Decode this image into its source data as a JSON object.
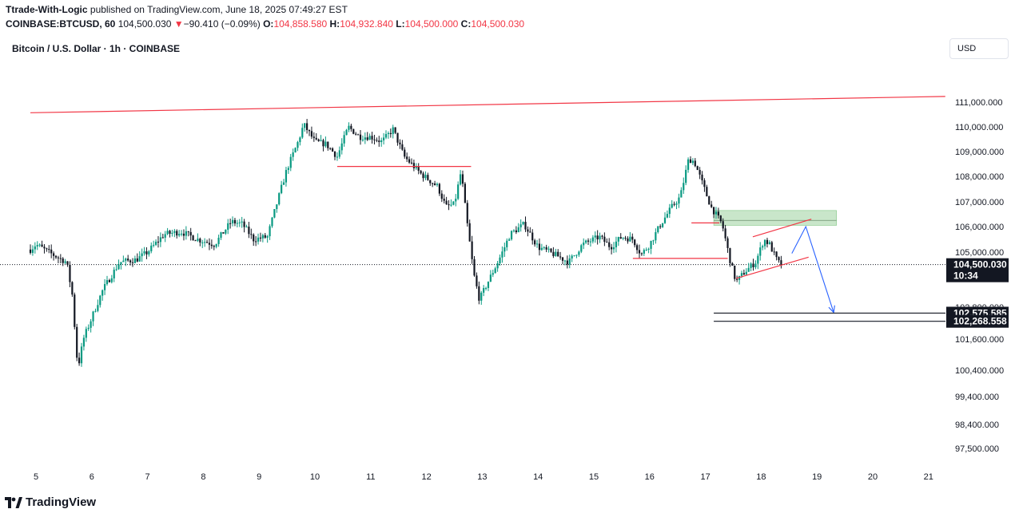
{
  "header": {
    "publisher": "Ttrade-With-Logic",
    "published_text": "published on TradingView.com, June 18, 2025 07:49:27 EST",
    "symbol": "COINBASE:BTCUSD, 60",
    "last": "104,500.030",
    "change_arrow": "▼",
    "change": "−90.410 (−0.09%)",
    "o_label": "O:",
    "o_value": "104,858.580",
    "h_label": "H:",
    "h_value": "104,932.840",
    "l_label": "L:",
    "l_value": "104,500.000",
    "c_label": "C:",
    "c_value": "104,500.030"
  },
  "legend_title": "Bitcoin / U.S. Dollar · 1h · COINBASE",
  "currency_button": "USD",
  "brand": "TradingView",
  "colors": {
    "up": "#089981",
    "down": "#131722",
    "red_line": "#f23645",
    "blue_arrow": "#2962ff",
    "zone_fill": "#a5d6a7",
    "price_label_bg": "#131722"
  },
  "chart_data": {
    "type": "candlestick",
    "ylim": [
      97000,
      111800
    ],
    "y_ticks": [
      "111,000.000",
      "110,000.000",
      "109,000.000",
      "108,000.000",
      "107,000.000",
      "106,000.000",
      "105,000.000",
      "102,800.000",
      "101,600.000",
      "100,400.000",
      "99,400.000",
      "98,400.000",
      "97,500.000"
    ],
    "y_tick_values": [
      111000,
      110000,
      109000,
      108000,
      107000,
      106000,
      105000,
      102800,
      101600,
      100400,
      99400,
      98400,
      97500
    ],
    "x_ticks": [
      "5",
      "6",
      "7",
      "8",
      "9",
      "10",
      "11",
      "12",
      "13",
      "14",
      "15",
      "16",
      "17",
      "18",
      "19",
      "20",
      "21"
    ],
    "x_tick_days": [
      5,
      6,
      7,
      8,
      9,
      10,
      11,
      12,
      13,
      14,
      15,
      16,
      17,
      18,
      19,
      20,
      21
    ],
    "price_path": [
      [
        4.9,
        105100
      ],
      [
        5.0,
        105300
      ],
      [
        5.3,
        104900
      ],
      [
        5.55,
        104600
      ],
      [
        5.65,
        103300
      ],
      [
        5.75,
        100450
      ],
      [
        5.85,
        101600
      ],
      [
        6.0,
        102400
      ],
      [
        6.2,
        103500
      ],
      [
        6.5,
        104600
      ],
      [
        6.8,
        104700
      ],
      [
        7.0,
        105000
      ],
      [
        7.3,
        105700
      ],
      [
        7.6,
        105800
      ],
      [
        7.9,
        105500
      ],
      [
        8.2,
        105300
      ],
      [
        8.5,
        106200
      ],
      [
        8.7,
        106100
      ],
      [
        8.9,
        105500
      ],
      [
        9.15,
        105600
      ],
      [
        9.3,
        106800
      ],
      [
        9.5,
        108300
      ],
      [
        9.7,
        109400
      ],
      [
        9.8,
        110100
      ],
      [
        10.0,
        109400
      ],
      [
        10.2,
        109300
      ],
      [
        10.4,
        108800
      ],
      [
        10.6,
        110000
      ],
      [
        10.8,
        109600
      ],
      [
        11.0,
        109600
      ],
      [
        11.2,
        109400
      ],
      [
        11.4,
        109900
      ],
      [
        11.6,
        108800
      ],
      [
        11.9,
        108100
      ],
      [
        12.2,
        107600
      ],
      [
        12.35,
        106800
      ],
      [
        12.5,
        106900
      ],
      [
        12.62,
        108200
      ],
      [
        12.72,
        106300
      ],
      [
        12.85,
        104100
      ],
      [
        12.95,
        103100
      ],
      [
        13.1,
        103800
      ],
      [
        13.3,
        104700
      ],
      [
        13.5,
        105700
      ],
      [
        13.75,
        106100
      ],
      [
        14.0,
        105200
      ],
      [
        14.3,
        104900
      ],
      [
        14.55,
        104600
      ],
      [
        14.8,
        105300
      ],
      [
        15.1,
        105600
      ],
      [
        15.3,
        105200
      ],
      [
        15.5,
        105600
      ],
      [
        15.7,
        105500
      ],
      [
        15.85,
        104900
      ],
      [
        16.0,
        105300
      ],
      [
        16.2,
        106100
      ],
      [
        16.4,
        106800
      ],
      [
        16.55,
        107200
      ],
      [
        16.7,
        108700
      ],
      [
        16.8,
        108600
      ],
      [
        16.95,
        107700
      ],
      [
        17.1,
        106800
      ],
      [
        17.3,
        106100
      ],
      [
        17.45,
        104600
      ],
      [
        17.55,
        103800
      ],
      [
        17.7,
        104200
      ],
      [
        17.9,
        104600
      ],
      [
        18.05,
        105500
      ],
      [
        18.15,
        105300
      ],
      [
        18.3,
        104600
      ],
      [
        18.38,
        104500
      ]
    ],
    "last_price_label": "104,500.030",
    "countdown_label": "10:34",
    "level_labels": [
      "102,575.585",
      "102,268.558"
    ],
    "level_values": [
      102575.585,
      102268.558
    ],
    "drawings": {
      "top_trendline": {
        "from": [
          4.9,
          110570
        ],
        "to": [
          21.3,
          111230
        ]
      },
      "support_line_1": {
        "from": [
          10.4,
          108400
        ],
        "to": [
          12.8,
          108400
        ]
      },
      "support_line_2": {
        "from": [
          15.7,
          104750
        ],
        "to": [
          17.4,
          104750
        ]
      },
      "resistance_line": {
        "from": [
          16.75,
          106150
        ],
        "to": [
          17.25,
          106150
        ]
      },
      "supply_zone": {
        "from_x": 17.15,
        "to_x": 19.35,
        "top": 106650,
        "bottom": 106050
      },
      "rising_channel_upper": {
        "from": [
          17.85,
          105600
        ],
        "to": [
          18.9,
          106300
        ]
      },
      "rising_channel_lower": {
        "from": [
          17.55,
          103950
        ],
        "to": [
          18.85,
          104800
        ]
      },
      "projection_arrow": [
        [
          18.55,
          104950
        ],
        [
          18.8,
          106000
        ],
        [
          19.3,
          102600
        ]
      ],
      "target_levels": {
        "from_x": 17.15,
        "to_x": 21.3,
        "values": [
          102575.585,
          102268.558
        ]
      }
    }
  }
}
